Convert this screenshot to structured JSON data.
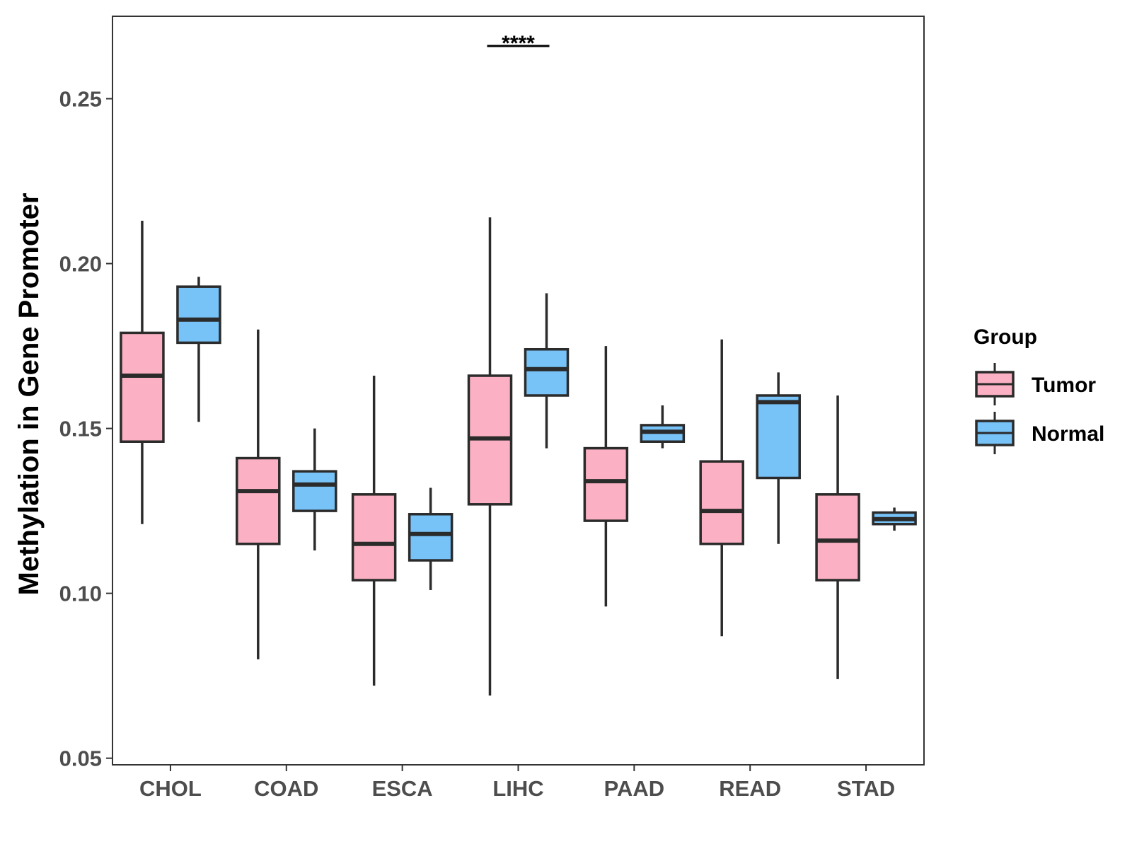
{
  "chart_data": {
    "type": "boxplot",
    "title": "",
    "xlabel": "",
    "ylabel": "Methylation in Gene Promoter",
    "ylim": [
      0.048,
      0.275
    ],
    "yticks": [
      "0.05",
      "0.10",
      "0.15",
      "0.20",
      "0.25"
    ],
    "categories": [
      "CHOL",
      "COAD",
      "ESCA",
      "LIHC",
      "PAAD",
      "READ",
      "STAD"
    ],
    "legend": {
      "title": "Group",
      "position": "right"
    },
    "series": [
      {
        "name": "Tumor",
        "color": "#fbb1c3",
        "boxes": [
          {
            "category": "CHOL",
            "min": 0.121,
            "q1": 0.146,
            "median": 0.166,
            "q3": 0.179,
            "max": 0.213
          },
          {
            "category": "COAD",
            "min": 0.08,
            "q1": 0.115,
            "median": 0.131,
            "q3": 0.141,
            "max": 0.18
          },
          {
            "category": "ESCA",
            "min": 0.072,
            "q1": 0.104,
            "median": 0.115,
            "q3": 0.13,
            "max": 0.166
          },
          {
            "category": "LIHC",
            "min": 0.069,
            "q1": 0.127,
            "median": 0.147,
            "q3": 0.166,
            "max": 0.214
          },
          {
            "category": "PAAD",
            "min": 0.096,
            "q1": 0.122,
            "median": 0.134,
            "q3": 0.144,
            "max": 0.175
          },
          {
            "category": "READ",
            "min": 0.087,
            "q1": 0.115,
            "median": 0.125,
            "q3": 0.14,
            "max": 0.177
          },
          {
            "category": "STAD",
            "min": 0.074,
            "q1": 0.104,
            "median": 0.116,
            "q3": 0.13,
            "max": 0.16
          }
        ]
      },
      {
        "name": "Normal",
        "color": "#77c3f8",
        "boxes": [
          {
            "category": "CHOL",
            "min": 0.152,
            "q1": 0.176,
            "median": 0.183,
            "q3": 0.193,
            "max": 0.196
          },
          {
            "category": "COAD",
            "min": 0.113,
            "q1": 0.125,
            "median": 0.133,
            "q3": 0.137,
            "max": 0.15
          },
          {
            "category": "ESCA",
            "min": 0.101,
            "q1": 0.11,
            "median": 0.118,
            "q3": 0.124,
            "max": 0.132
          },
          {
            "category": "LIHC",
            "min": 0.144,
            "q1": 0.16,
            "median": 0.168,
            "q3": 0.174,
            "max": 0.191
          },
          {
            "category": "PAAD",
            "min": 0.144,
            "q1": 0.146,
            "median": 0.149,
            "q3": 0.151,
            "max": 0.157
          },
          {
            "category": "READ",
            "min": 0.115,
            "q1": 0.135,
            "median": 0.158,
            "q3": 0.16,
            "max": 0.167
          },
          {
            "category": "STAD",
            "min": 0.119,
            "q1": 0.121,
            "median": 0.1225,
            "q3": 0.1245,
            "max": 0.126
          }
        ]
      }
    ],
    "annotations": [
      {
        "category": "LIHC",
        "text": "****",
        "y": 0.266
      }
    ]
  }
}
